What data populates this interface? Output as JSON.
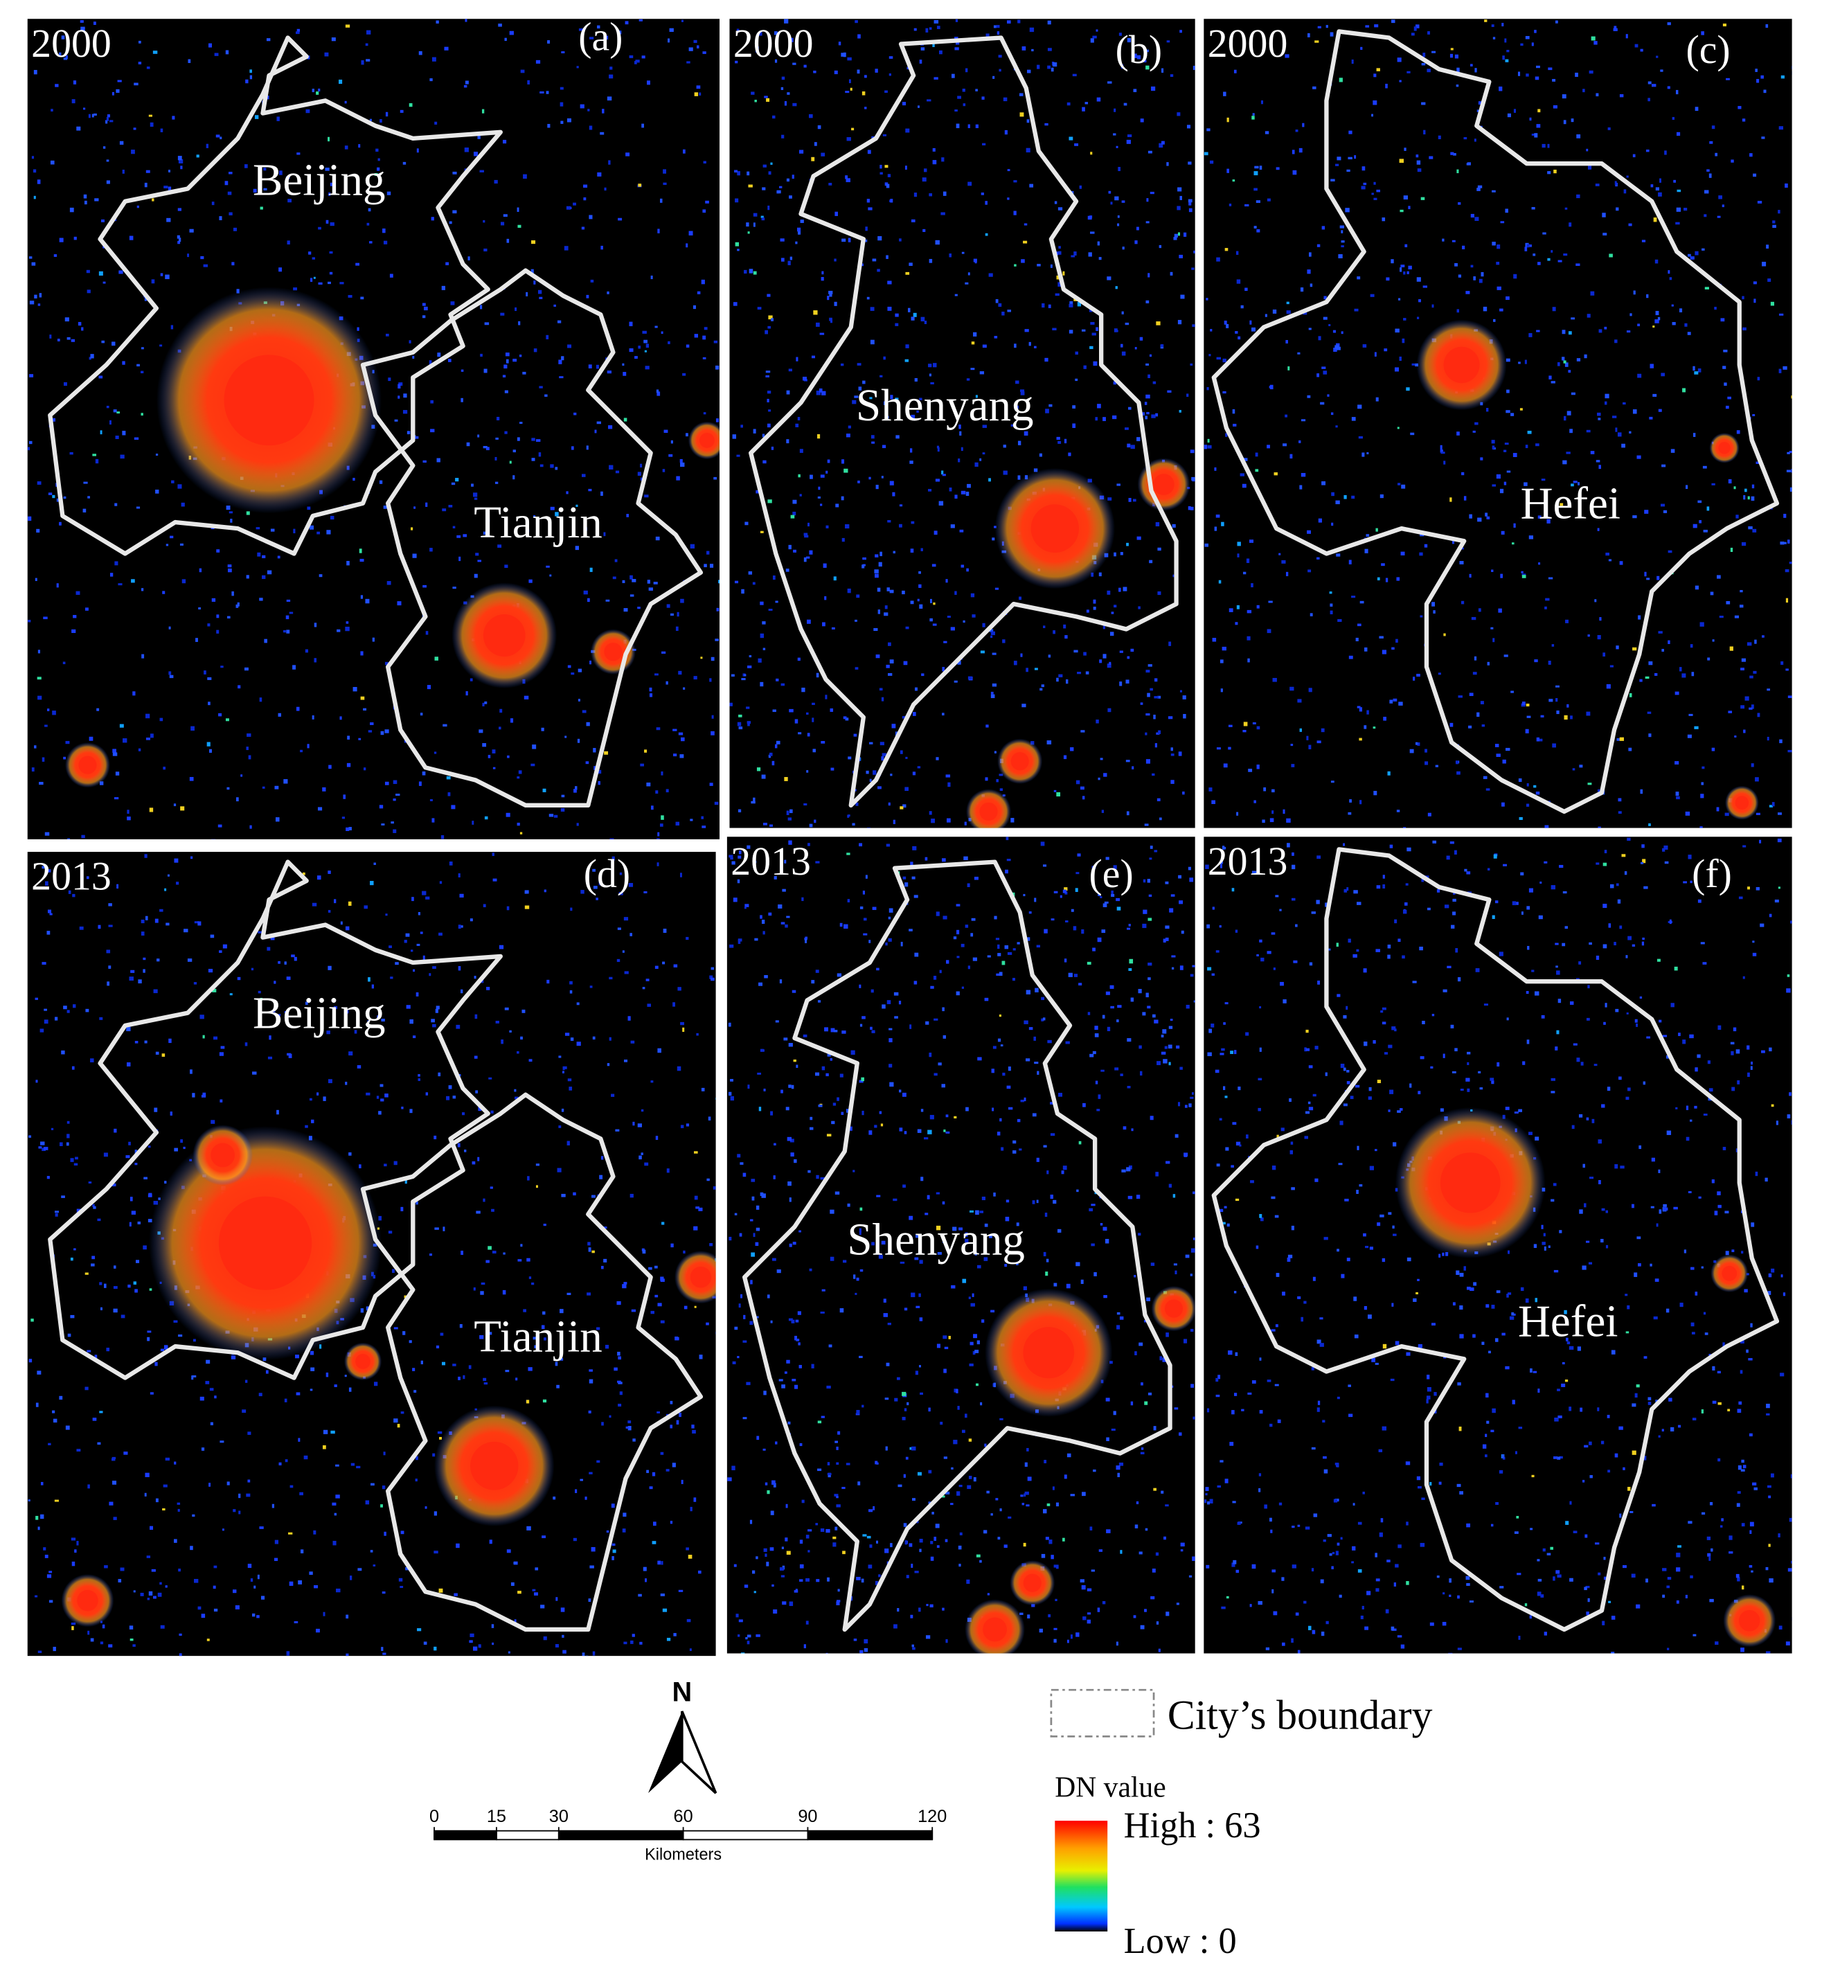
{
  "panels": [
    {
      "year": "2000",
      "letter": "(a)",
      "cities": [
        "Beijing",
        "Tianjin"
      ]
    },
    {
      "year": "2000",
      "letter": "(b)",
      "cities": [
        "Shenyang"
      ]
    },
    {
      "year": "2000",
      "letter": "(c)",
      "cities": [
        "Hefei"
      ]
    },
    {
      "year": "2013",
      "letter": "(d)",
      "cities": [
        "Beijing",
        "Tianjin"
      ]
    },
    {
      "year": "2013",
      "letter": "(e)",
      "cities": [
        "Shenyang"
      ]
    },
    {
      "year": "2013",
      "letter": "(f)",
      "cities": [
        "Hefei"
      ]
    }
  ],
  "north": "N",
  "scale_bar": {
    "ticks": [
      0,
      15,
      30,
      60,
      90,
      120
    ],
    "unit": "Kilometers"
  },
  "legend": {
    "boundary": "City’s boundary",
    "title": "DN value",
    "high": "High : 63",
    "low": "Low : 0"
  }
}
